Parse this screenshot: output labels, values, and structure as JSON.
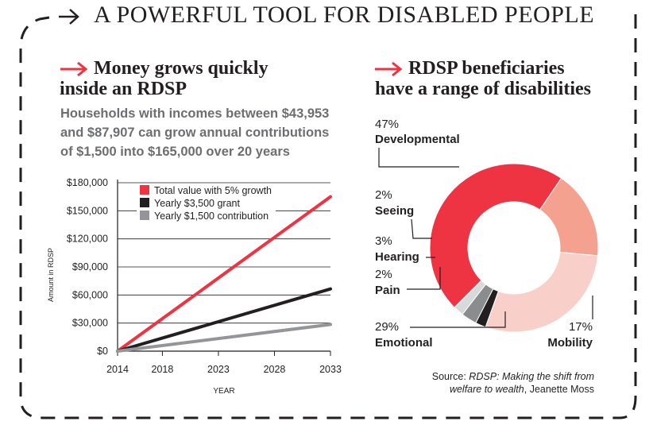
{
  "main_title": "A POWERFUL TOOL FOR DISABLED PEOPLE",
  "left": {
    "heading_line1": "Money grows quickly",
    "heading_line2": "inside an RDSP",
    "subtitle": "Households with incomes between $43,953 and $87,907 can grow annual contributions of $1,500 into $165,000 over 20 years"
  },
  "right": {
    "heading_line1": "RDSP beneficiaries",
    "heading_line2": "have a range of disabilities"
  },
  "source": {
    "prefix": "Source: ",
    "title": "RDSP: Making the shift from welfare to wealth",
    "suffix": ", Jeanette Moss"
  },
  "colors": {
    "red": "#ee3342",
    "black": "#231f20",
    "gray": "#939598",
    "salmon": "#f4a190",
    "pink": "#f9d0c9",
    "light_gray": "#d8d9da",
    "mid_gray": "#8a8c8e"
  },
  "chart_data": [
    {
      "type": "line",
      "title": "Money grows quickly inside an RDSP",
      "xlabel": "YEAR",
      "ylabel": "Amount in RDSP",
      "x_ticks": [
        "2014",
        "2018",
        "2023",
        "2028",
        "2033"
      ],
      "y_ticks": [
        "$0",
        "$30,000",
        "$60,000",
        "$90,000",
        "$120,000",
        "$150,000",
        "$180,000"
      ],
      "xlim": [
        2014,
        2033
      ],
      "ylim": [
        0,
        180000
      ],
      "series": [
        {
          "name": "Total value with 5% growth",
          "color": "#ee3342",
          "x": [
            2014,
            2033
          ],
          "y": [
            0,
            165000
          ]
        },
        {
          "name": "Yearly $3,500 grant",
          "color": "#231f20",
          "x": [
            2014,
            2033
          ],
          "y": [
            0,
            66500
          ]
        },
        {
          "name": "Yearly $1,500 contribution",
          "color": "#939598",
          "x": [
            2014,
            2033
          ],
          "y": [
            0,
            28500
          ]
        }
      ]
    },
    {
      "type": "pie",
      "title": "RDSP beneficiaries have a range of disabilities",
      "slices": [
        {
          "label": "Developmental",
          "pct": "47%",
          "value": 47,
          "color": "#ee3342"
        },
        {
          "label": "Mobility",
          "pct": "17%",
          "value": 17,
          "color": "#f4a190"
        },
        {
          "label": "Emotional",
          "pct": "29%",
          "value": 29,
          "color": "#f9d0c9"
        },
        {
          "label": "Pain",
          "pct": "2%",
          "value": 2,
          "color": "#231f20"
        },
        {
          "label": "Hearing",
          "pct": "3%",
          "value": 3,
          "color": "#8a8c8e"
        },
        {
          "label": "Seeing",
          "pct": "2%",
          "value": 2,
          "color": "#d8d9da"
        }
      ]
    }
  ]
}
